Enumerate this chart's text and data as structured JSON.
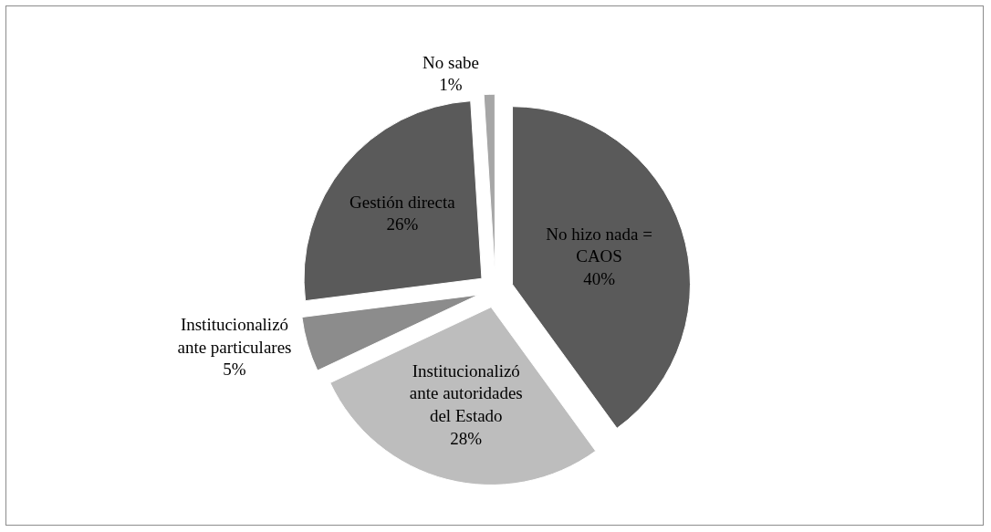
{
  "chart_data": {
    "type": "pie",
    "categories": [
      "No hizo nada = CAOS",
      "Institucionalizó ante autoridades del Estado",
      "Institucionalizó ante particulares",
      "Gestión directa",
      "No sabe"
    ],
    "values": [
      40,
      28,
      5,
      26,
      1
    ],
    "value_labels": [
      "40%",
      "28%",
      "5%",
      "26%",
      "1%"
    ],
    "colors": [
      "#5a5a5a",
      "#bdbdbd",
      "#8c8c8c",
      "#5a5a5a",
      "#a6a6a6"
    ],
    "legend": false
  }
}
